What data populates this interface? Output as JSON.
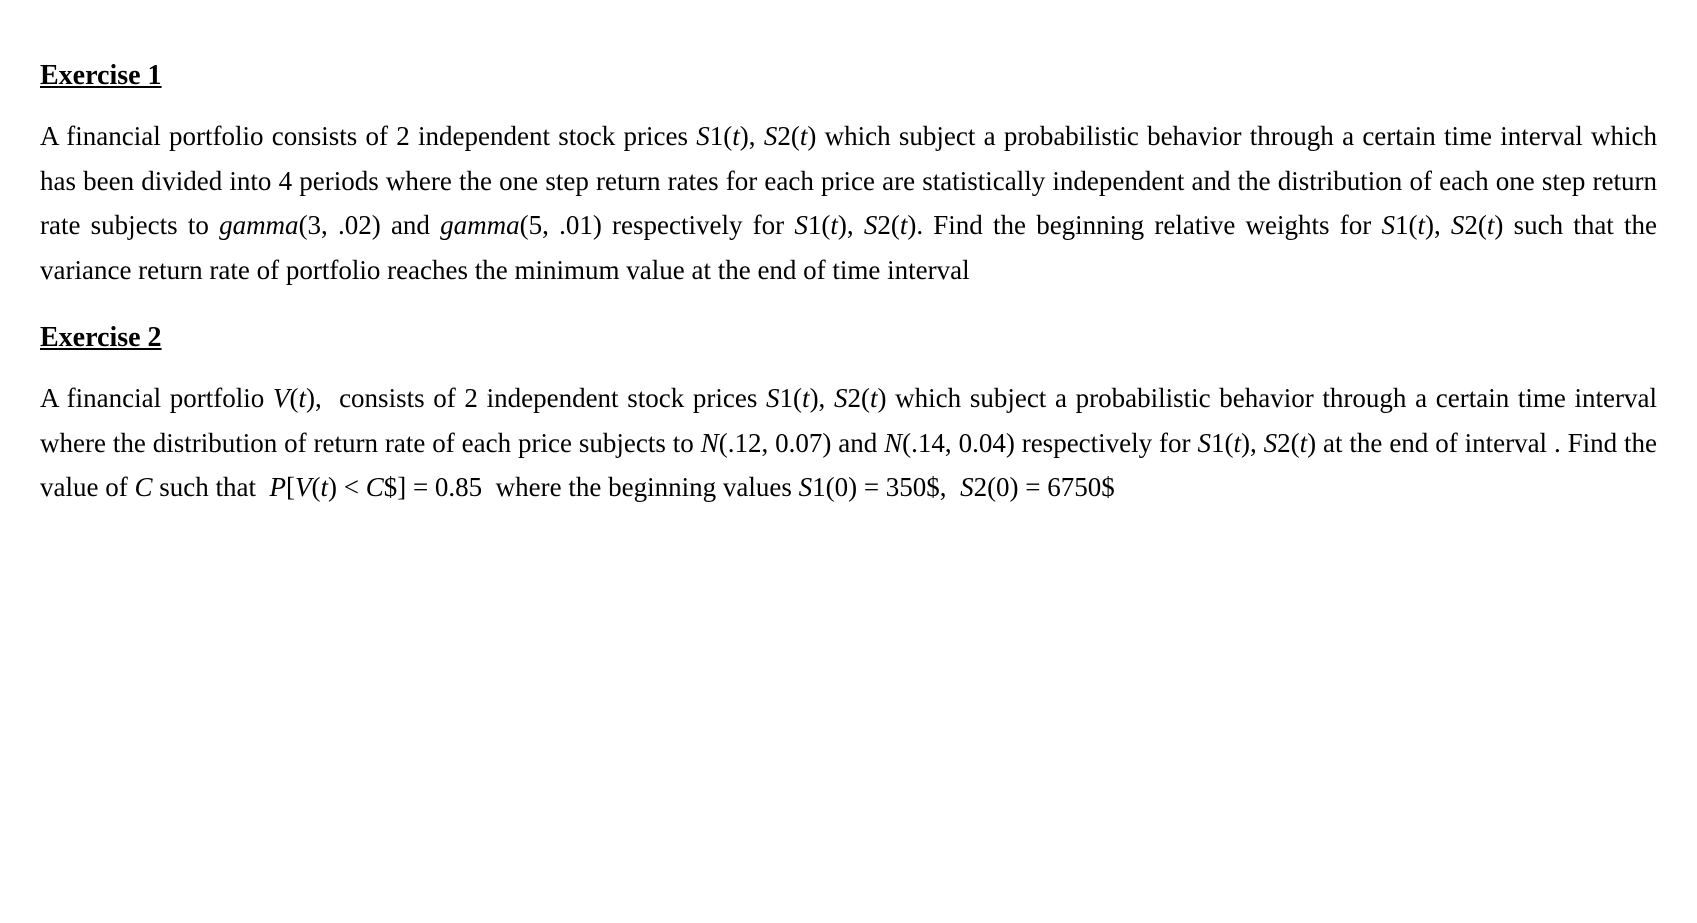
{
  "typography": {
    "font_family": "Times New Roman, serif",
    "heading_fontsize_pt": 21,
    "heading_weight": "bold",
    "heading_underline": true,
    "body_fontsize_pt": 20,
    "line_height": 1.65,
    "text_align": "justify",
    "text_color": "#000000",
    "background_color": "#ffffff",
    "math_style": "italic"
  },
  "exercises": [
    {
      "heading": "Exercise 1",
      "body_html": "A financial portfolio consists of 2 independent stock prices <span class=\"mi\">S</span>1(<span class=\"mi\">t</span>), <span class=\"mi\">S</span>2(<span class=\"mi\">t</span>) which subject a probabilistic behavior through a certain time interval which has been divided into 4 periods where the one step return rates for each price are statistically independent and the distribution of each one step return rate subjects to <span class=\"mi\">gamma</span>(3, .02) and <span class=\"mi\">gamma</span>(5, .01) respectively for <span class=\"mi\">S</span>1(<span class=\"mi\">t</span>), <span class=\"mi\">S</span>2(<span class=\"mi\">t</span>). Find the beginning relative weights for <span class=\"mi\">S</span>1(<span class=\"mi\">t</span>), <span class=\"mi\">S</span>2(<span class=\"mi\">t</span>) such that the variance return rate of portfolio reaches the minimum value at the end of time interval",
      "data": {
        "num_stocks": 2,
        "num_periods": 4,
        "stock1_return_distribution": "gamma",
        "stock1_gamma_shape": 3,
        "stock1_gamma_scale": 0.02,
        "stock2_return_distribution": "gamma",
        "stock2_gamma_shape": 5,
        "stock2_gamma_scale": 0.01,
        "objective": "minimize variance of portfolio return rate at end of interval"
      }
    },
    {
      "heading": "Exercise 2",
      "body_html": "A financial portfolio <span class=\"mi\">V</span>(<span class=\"mi\">t</span>),&nbsp; consists of 2 independent stock prices <span class=\"mi\">S</span>1(<span class=\"mi\">t</span>), <span class=\"mi\">S</span>2(<span class=\"mi\">t</span>) which subject a probabilistic behavior through a certain time interval where the distribution of return rate of each price subjects to <span class=\"mi\">N</span>(.12, 0.07) and <span class=\"mi\">N</span>(.14, 0.04) respectively for <span class=\"mi\">S</span>1(<span class=\"mi\">t</span>), <span class=\"mi\">S</span>2(<span class=\"mi\">t</span>) at the end of interval . Find the value of <span class=\"mi\">C</span> such that&nbsp; <span class=\"mi\">P</span>[<span class=\"mi\">V</span>(<span class=\"mi\">t</span>) &lt; <span class=\"mi\">C</span>$] = 0.85&nbsp; where the beginning values <span class=\"mi\">S</span>1(0) = 350$,&nbsp; <span class=\"mi\">S</span>2(0) = 6750$",
      "data": {
        "num_stocks": 2,
        "stock1_return_distribution": "normal",
        "stock1_normal_mean": 0.12,
        "stock1_normal_param2": 0.07,
        "stock2_return_distribution": "normal",
        "stock2_normal_mean": 0.14,
        "stock2_normal_param2": 0.04,
        "probability_target": 0.85,
        "S1_initial_value_usd": 350,
        "S2_initial_value_usd": 6750,
        "objective": "find C such that P[V(t) < C$] = 0.85"
      }
    }
  ]
}
